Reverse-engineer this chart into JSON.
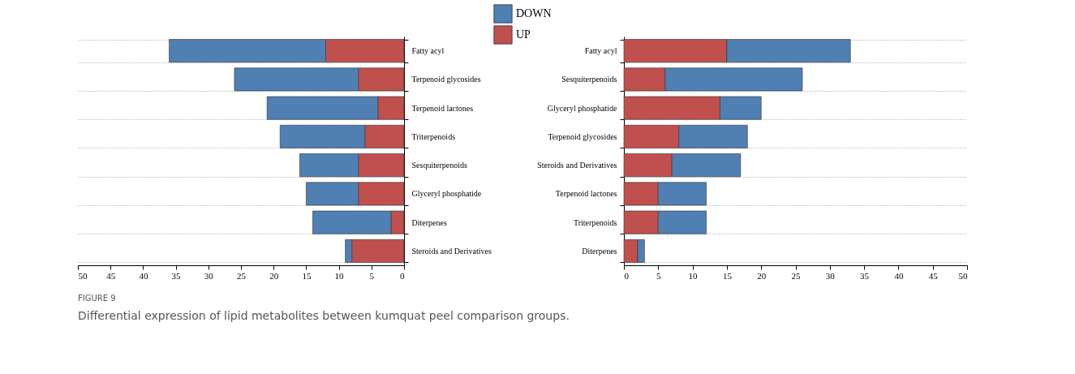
{
  "chart_data": [
    {
      "type": "bar",
      "orientation": "horizontal",
      "stacked": true,
      "legend": "top right",
      "grid": "y",
      "categories": [
        "Fatty acyl",
        "Terpenoid glycosides",
        "Terpenoid lactones",
        "Triterpenoids",
        "Sesquiterpenoids",
        "Glyceryl phosphatide",
        "Diterpenes",
        "Steroids and Derivatives"
      ],
      "series": [
        {
          "name": "UP",
          "color": "#c0504d",
          "values": [
            12,
            7,
            4,
            6,
            7,
            7,
            2,
            8
          ]
        },
        {
          "name": "DOWN",
          "color": "#4f7fb3",
          "values": [
            24,
            19,
            17,
            13,
            9,
            8,
            12,
            1
          ]
        }
      ],
      "xlim": [
        50,
        0
      ],
      "xticks": [
        50,
        45,
        40,
        35,
        30,
        25,
        20,
        15,
        10,
        5,
        0
      ]
    },
    {
      "type": "bar",
      "orientation": "horizontal",
      "stacked": true,
      "grid": "y",
      "categories": [
        "Fatty acyl",
        "Sesquiterpenoids",
        "Glyceryl phosphatide",
        "Terpenoid glycosides",
        "Steroids and Derivatives",
        "Terpenoid lactones",
        "Triterpenoids",
        "Diterpenes"
      ],
      "series": [
        {
          "name": "UP",
          "color": "#c0504d",
          "values": [
            15,
            6,
            14,
            8,
            7,
            5,
            5,
            2
          ]
        },
        {
          "name": "DOWN",
          "color": "#4f7fb3",
          "values": [
            18,
            20,
            6,
            10,
            10,
            7,
            7,
            1
          ]
        }
      ],
      "xlim": [
        0,
        50
      ],
      "xticks": [
        0,
        5,
        10,
        15,
        20,
        25,
        30,
        35,
        40,
        45,
        50
      ],
      "annotations": [
        "FIGURE 9",
        "Differential expression of lipid metabolites between kumquat peel comparison groups."
      ]
    }
  ]
}
